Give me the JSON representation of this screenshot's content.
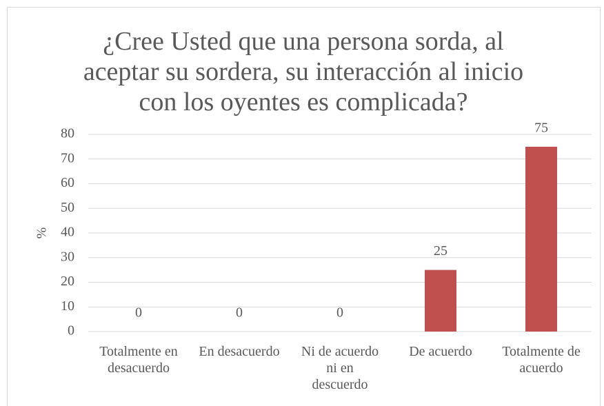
{
  "chart_data": {
    "type": "bar",
    "title": "¿Cree Usted que una persona sorda, al aceptar su sordera, su interacción al inicio con los oyentes es complicada?",
    "y_label": "%",
    "categories": [
      "Totalmente en desacuerdo",
      "En desacuerdo",
      "Ni de acuerdo ni en descuerdo",
      "De acuerdo",
      "Totalmente de acuerdo"
    ],
    "values": [
      0,
      0,
      0,
      25,
      75
    ],
    "color": "#c0504d",
    "ylim": [
      0,
      80
    ],
    "yticks": [
      0,
      10,
      20,
      30,
      40,
      50,
      60,
      70,
      80
    ],
    "grid": true
  }
}
